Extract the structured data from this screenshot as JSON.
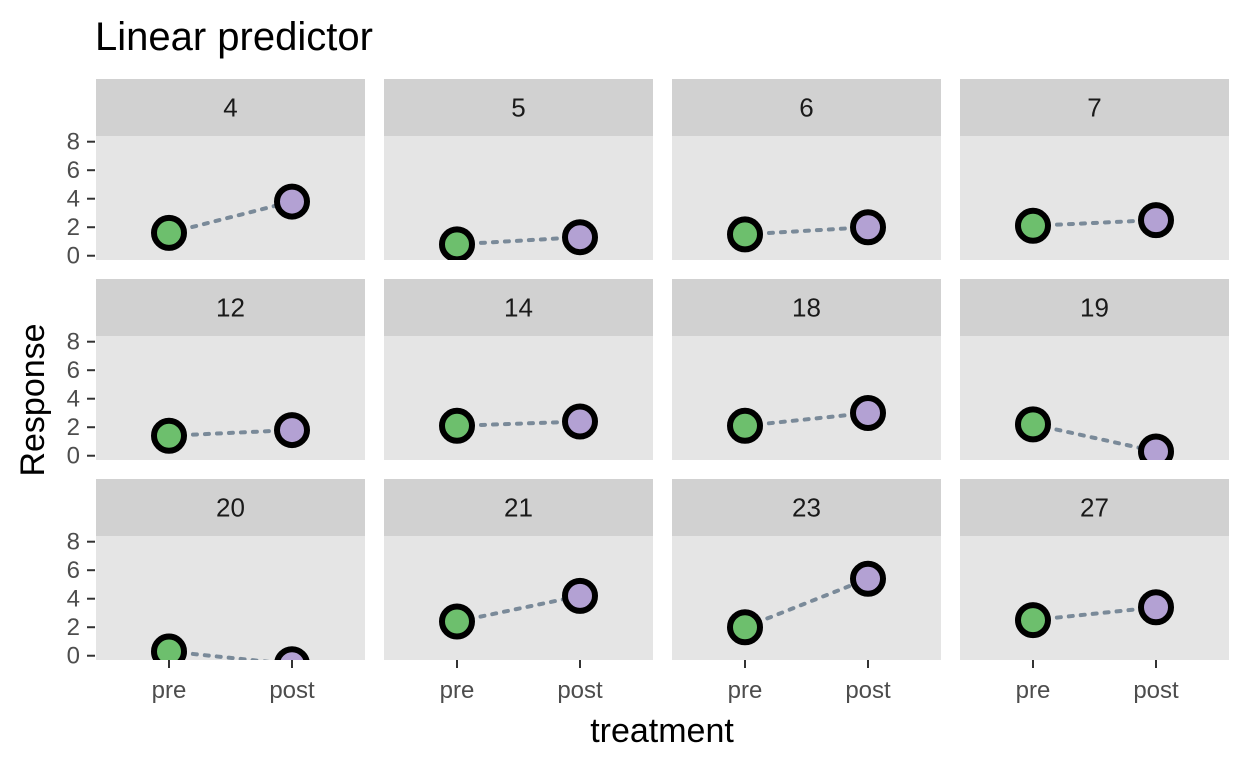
{
  "chart_data": {
    "type": "scatter",
    "title": "Linear predictor",
    "xlabel": "treatment",
    "ylabel": "Response",
    "x_categories": [
      "pre",
      "post"
    ],
    "y_ticks": [
      0,
      2,
      4,
      6,
      8
    ],
    "ylim": [
      -0.3,
      8.4
    ],
    "grid": false,
    "colors": {
      "panel_background": "#e5e5e5",
      "strip_background": "#d1d1d1",
      "pre": "#6dbf6d",
      "post": "#b3a1d3",
      "point_outline": "#000000",
      "line": "#7a8a99"
    },
    "panels": [
      {
        "label": "4",
        "pre": 1.6,
        "post": 3.8
      },
      {
        "label": "5",
        "pre": 0.8,
        "post": 1.3
      },
      {
        "label": "6",
        "pre": 1.5,
        "post": 2.0
      },
      {
        "label": "7",
        "pre": 2.1,
        "post": 2.5
      },
      {
        "label": "12",
        "pre": 1.4,
        "post": 1.8
      },
      {
        "label": "14",
        "pre": 2.1,
        "post": 2.4
      },
      {
        "label": "18",
        "pre": 2.1,
        "post": 3.0
      },
      {
        "label": "19",
        "pre": 2.2,
        "post": 0.3
      },
      {
        "label": "20",
        "pre": 0.3,
        "post": -0.6
      },
      {
        "label": "21",
        "pre": 2.4,
        "post": 4.2
      },
      {
        "label": "23",
        "pre": 2.0,
        "post": 5.4
      },
      {
        "label": "27",
        "pre": 2.5,
        "post": 3.4
      }
    ]
  }
}
